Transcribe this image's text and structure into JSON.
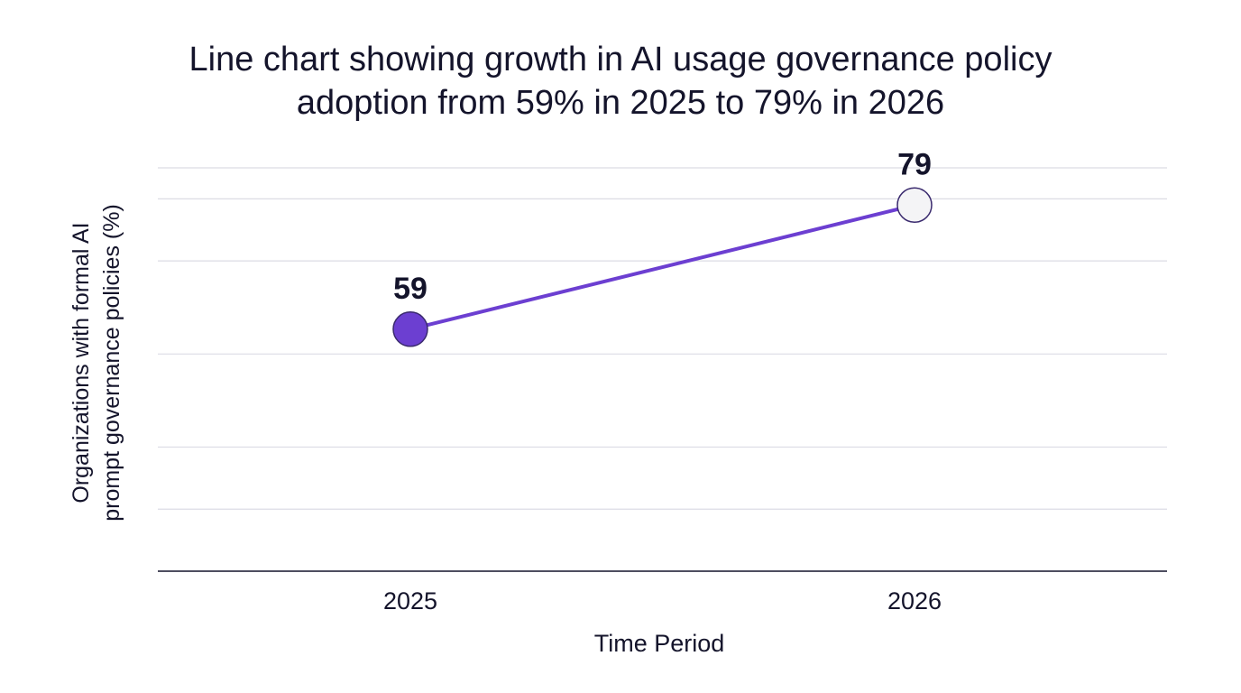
{
  "chart_data": {
    "type": "line",
    "title_lines": [
      "Line chart showing growth in AI usage governance policy",
      "adoption from 59% in 2025 to 79% in 2026"
    ],
    "xlabel": "Time Period",
    "ylabel_lines": [
      "Organizations with formal AI",
      "prompt governance policies (%)"
    ],
    "categories": [
      "2025",
      "2026"
    ],
    "series": [
      {
        "values": [
          59,
          79
        ],
        "point_colors": [
          "#6c3fd1",
          "#f4f4f6"
        ]
      }
    ],
    "data_labels": [
      "59",
      "79"
    ],
    "ylim": [
      20,
      85
    ],
    "grid": true,
    "gridlines": [
      30,
      40,
      55,
      70,
      80
    ],
    "colors": {
      "line": "#6c3fd1",
      "point_stroke": "#3a2a6e",
      "grid": "#dcdce4",
      "axis": "#14142b",
      "text": "#14142b"
    }
  }
}
